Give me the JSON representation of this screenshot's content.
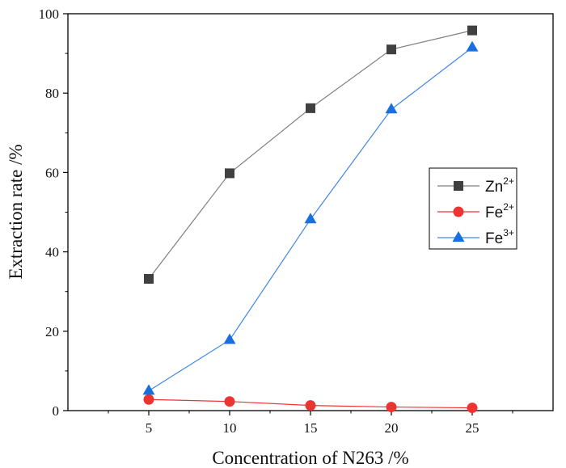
{
  "chart_data": {
    "type": "line",
    "title": "",
    "xlabel": "Concentration of N263 /%",
    "ylabel": "Extraction rate /%",
    "x": [
      5,
      10,
      15,
      20,
      25
    ],
    "x_ticks": [
      "5",
      "10",
      "15",
      "20",
      "25"
    ],
    "y_ticks": [
      "0",
      "20",
      "40",
      "60",
      "80",
      "100"
    ],
    "xlim": [
      0,
      30
    ],
    "ylim": [
      0,
      100
    ],
    "grid": false,
    "legend_position": "right",
    "series": [
      {
        "name": "Zn",
        "charge": "2+",
        "values": [
          33.2,
          59.8,
          76.2,
          91.0,
          95.8
        ],
        "color": "#404040",
        "line_color": "#7f7f7f",
        "marker": "square"
      },
      {
        "name": "Fe",
        "charge": "2+",
        "values": [
          2.8,
          2.3,
          1.3,
          0.9,
          0.7
        ],
        "color": "#ee3333",
        "line_color": "#ee3333",
        "marker": "circle"
      },
      {
        "name": "Fe",
        "charge": "3+",
        "values": [
          5.0,
          17.8,
          48.2,
          75.9,
          91.5
        ],
        "color": "#1a6fe0",
        "line_color": "#3f86e8",
        "marker": "triangle"
      }
    ]
  }
}
